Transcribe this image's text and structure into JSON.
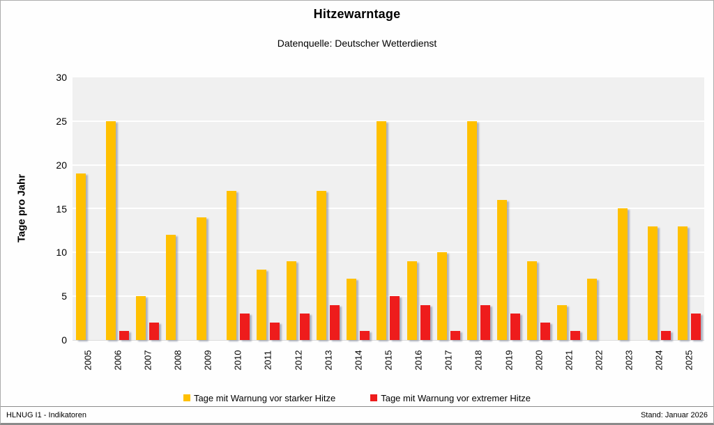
{
  "chart_data": {
    "type": "bar",
    "title": "Hitzewarntage",
    "subtitle": "Datenquelle: Deutscher Wetterdienst",
    "ylabel": "Tage pro Jahr",
    "xlabel": "",
    "ylim": [
      0,
      30
    ],
    "yticks": [
      0,
      5,
      10,
      15,
      20,
      25,
      30
    ],
    "grid": "horizontal",
    "legend_position": "bottom-center",
    "categories": [
      "2005",
      "2006",
      "2007",
      "2008",
      "2009",
      "2010",
      "2011",
      "2012",
      "2013",
      "2014",
      "2015",
      "2016",
      "2017",
      "2018",
      "2019",
      "2020",
      "2021",
      "2022",
      "2023",
      "2024",
      "2025"
    ],
    "series": [
      {
        "name": "Tage mit Warnung vor starker Hitze",
        "color": "#FFC000",
        "values": [
          19,
          25,
          5,
          12,
          14,
          17,
          8,
          9,
          17,
          7,
          25,
          9,
          10,
          25,
          16,
          9,
          4,
          7,
          15,
          13,
          13
        ]
      },
      {
        "name": "Tage mit Warnung vor extremer Hitze",
        "color": "#EE1C1C",
        "values": [
          0,
          1,
          2,
          0,
          0,
          3,
          2,
          3,
          4,
          1,
          5,
          4,
          1,
          4,
          3,
          2,
          1,
          0,
          0,
          1,
          3
        ]
      }
    ]
  },
  "colors": {
    "plot_background": "#F0F0F0",
    "gridline": "#FFFFFF"
  },
  "footer": {
    "left": "HLNUG I1 - Indikatoren",
    "right": "Stand: Januar 2026"
  }
}
